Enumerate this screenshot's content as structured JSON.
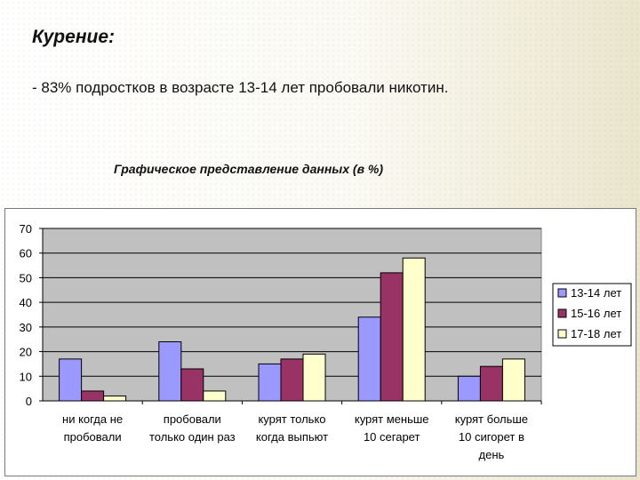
{
  "slide": {
    "title": "Курение:",
    "bullet": "- 83% подростков в возрасте 13-14 лет пробовали никотин.",
    "caption": "Графическое представление данных (в %)"
  },
  "chart_data": {
    "type": "bar",
    "categories": [
      [
        "ни когда не",
        "пробовали"
      ],
      [
        "пробовали",
        "только один раз"
      ],
      [
        "курят только",
        "когда выпьют"
      ],
      [
        "курят меньше",
        "10 сегарет"
      ],
      [
        "курят больше",
        "10 сигорет в",
        "день"
      ]
    ],
    "series": [
      {
        "name": "13-14 лет",
        "color": "#9999ff",
        "values": [
          17,
          24,
          15,
          34,
          10
        ]
      },
      {
        "name": "15-16 лет",
        "color": "#993366",
        "values": [
          4,
          13,
          17,
          52,
          14
        ]
      },
      {
        "name": "17-18 лет",
        "color": "#ffffcc",
        "values": [
          2,
          4,
          19,
          58,
          17
        ]
      }
    ],
    "ylim": [
      0,
      70
    ],
    "yticks": [
      "0",
      "10",
      "20",
      "30",
      "40",
      "50",
      "60",
      "70"
    ],
    "grid": true,
    "plot_background": "#c0c0c0",
    "legend_position": "right"
  }
}
